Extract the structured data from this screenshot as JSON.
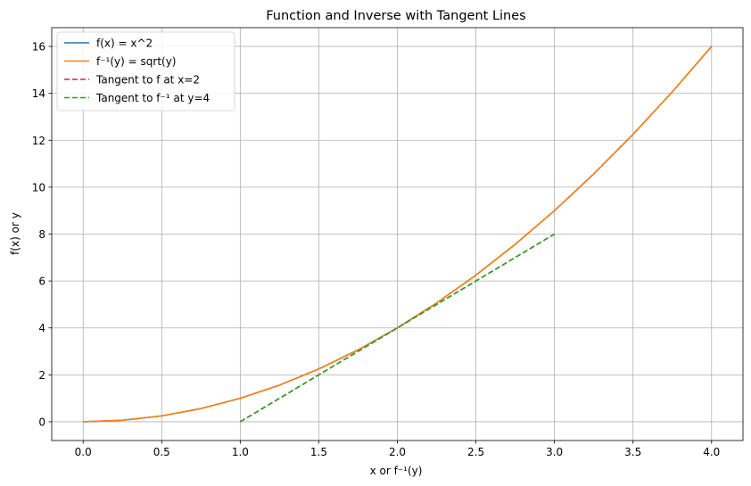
{
  "chart_data": {
    "type": "line",
    "title": "Function and Inverse with Tangent Lines",
    "xlabel": "x or f⁻¹(y)",
    "ylabel": "f(x) or y",
    "xlim": [
      -0.2,
      4.2
    ],
    "ylim": [
      -0.8,
      16.8
    ],
    "xticks": [
      0.0,
      0.5,
      1.0,
      1.5,
      2.0,
      2.5,
      3.0,
      3.5,
      4.0
    ],
    "xtick_labels": [
      "0.0",
      "0.5",
      "1.0",
      "1.5",
      "2.0",
      "2.5",
      "3.0",
      "3.5",
      "4.0"
    ],
    "yticks": [
      0,
      2,
      4,
      6,
      8,
      10,
      12,
      14,
      16
    ],
    "ytick_labels": [
      "0",
      "2",
      "4",
      "6",
      "8",
      "10",
      "12",
      "14",
      "16"
    ],
    "grid": true,
    "legend_position": "top-left",
    "series": [
      {
        "name": "f(x) = x^2",
        "color": "#1f77b4",
        "style": "solid",
        "x": [
          0.0,
          0.25,
          0.5,
          0.75,
          1.0,
          1.25,
          1.5,
          1.75,
          2.0,
          2.25,
          2.5,
          2.75,
          3.0,
          3.25,
          3.5,
          3.75,
          4.0
        ],
        "y": [
          0.0,
          0.0625,
          0.25,
          0.5625,
          1.0,
          1.5625,
          2.25,
          3.0625,
          4.0,
          5.0625,
          6.25,
          7.5625,
          9.0,
          10.5625,
          12.25,
          14.0625,
          16.0
        ]
      },
      {
        "name": "f⁻¹(y) = sqrt(y)",
        "color": "#ff7f0e",
        "style": "solid",
        "x": [
          0.0,
          0.25,
          0.5,
          0.75,
          1.0,
          1.25,
          1.5,
          1.75,
          2.0,
          2.25,
          2.5,
          2.75,
          3.0,
          3.25,
          3.5,
          3.75,
          4.0
        ],
        "y": [
          0.0,
          0.0625,
          0.25,
          0.5625,
          1.0,
          1.5625,
          2.25,
          3.0625,
          4.0,
          5.0625,
          6.25,
          7.5625,
          9.0,
          10.5625,
          12.25,
          14.0625,
          16.0
        ]
      },
      {
        "name": "Tangent to f at x=2",
        "color": "#d62728",
        "style": "dashed",
        "x": [
          1.0,
          3.0
        ],
        "y": [
          0.0,
          8.0
        ]
      },
      {
        "name": "Tangent to f⁻¹ at y=4",
        "color": "#2ca02c",
        "style": "dashed",
        "x": [
          1.0,
          3.0
        ],
        "y": [
          0.0,
          8.0
        ]
      }
    ]
  }
}
